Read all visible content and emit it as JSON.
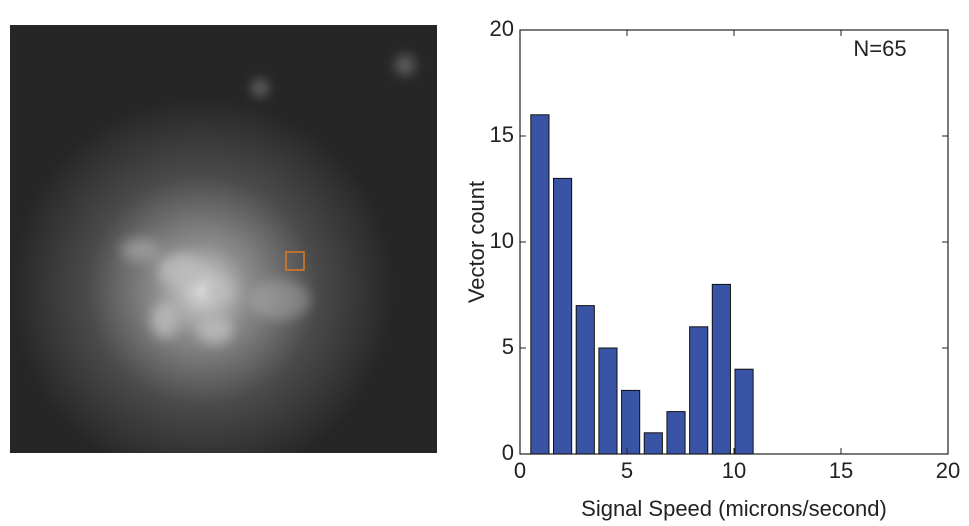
{
  "chart_data": {
    "type": "histogram",
    "xlabel": "Signal Speed (microns/second)",
    "ylabel": "Vector count",
    "annotation": "N=65",
    "bins": [
      0.4,
      1.46,
      2.52,
      3.58,
      4.64,
      5.7,
      6.76,
      7.82,
      8.88,
      9.94,
      11.0
    ],
    "values": [
      16,
      13,
      7,
      5,
      3,
      1,
      2,
      6,
      8,
      4
    ],
    "color": "#3a54a5",
    "xlim": [
      0,
      20
    ],
    "xticks": [
      0,
      5,
      10,
      15,
      20
    ],
    "ylim": [
      0,
      20
    ],
    "yticks": [
      0,
      5,
      10,
      15,
      20
    ]
  }
}
